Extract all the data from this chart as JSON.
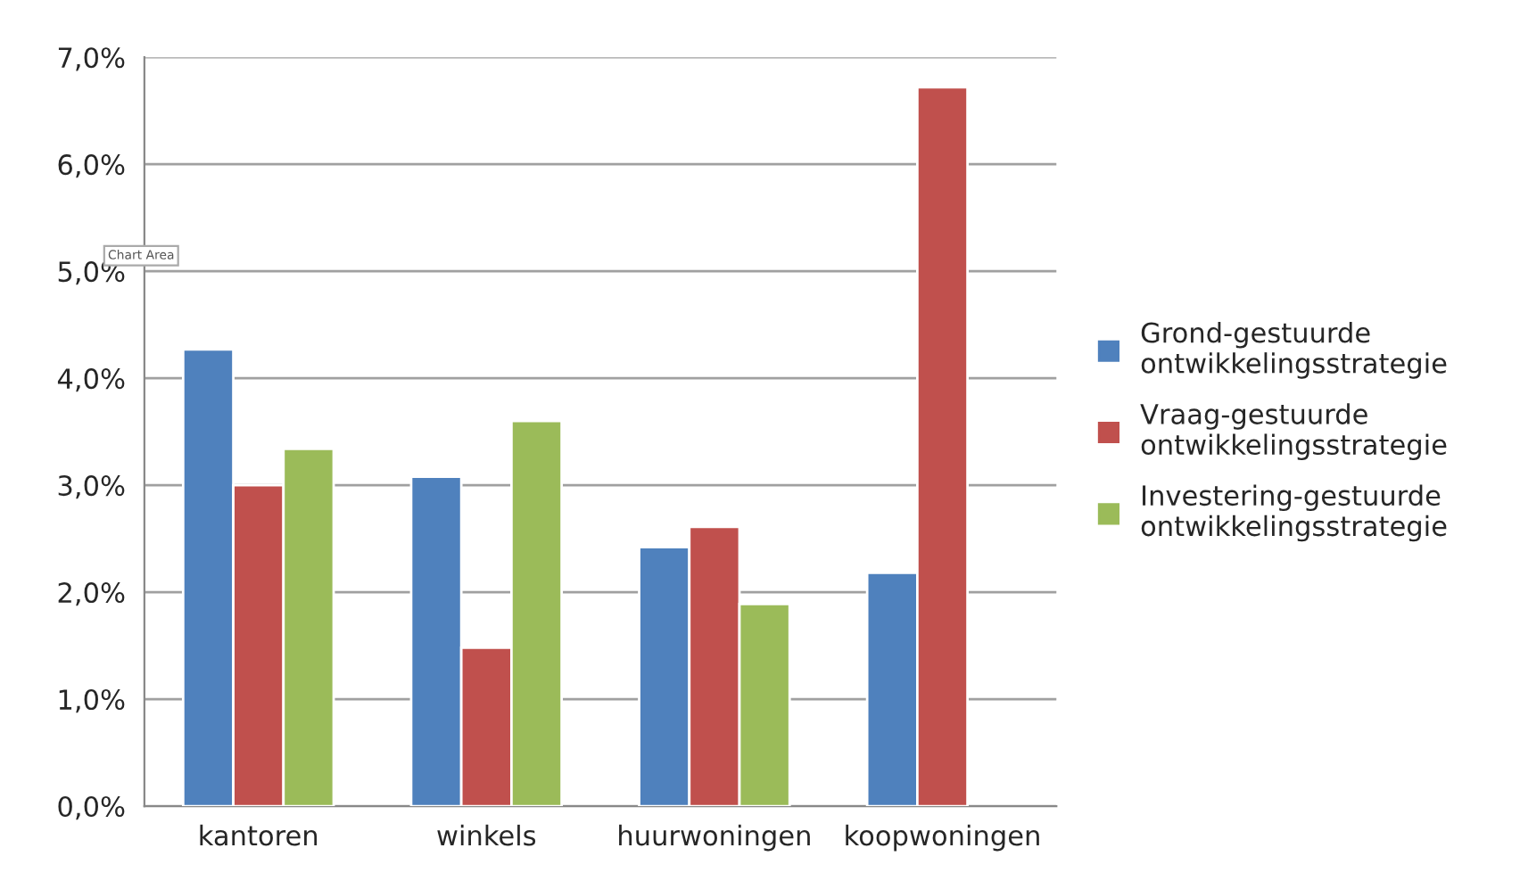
{
  "chart_data": {
    "type": "bar",
    "categories": [
      "kantoren",
      "winkels",
      "huurwoningen",
      "koopwoningen"
    ],
    "series": [
      {
        "name": "Grond-gestuurde ontwikkelingsstrategie",
        "color": "#4f81bd",
        "values": [
          4.27,
          3.08,
          2.42,
          2.18
        ]
      },
      {
        "name": "Vraag-gestuurde ontwikkelingsstrategie",
        "color": "#c0504d",
        "values": [
          3.0,
          1.48,
          2.61,
          6.72
        ]
      },
      {
        "name": "Investering-gestuurde ontwikkelingsstrategie",
        "color": "#9bbb59",
        "values": [
          3.34,
          3.6,
          1.89,
          null
        ]
      }
    ],
    "ylim": [
      0,
      7
    ],
    "yticks": [
      {
        "value": 0,
        "label": "0,0%"
      },
      {
        "value": 1,
        "label": "1,0%"
      },
      {
        "value": 2,
        "label": "2,0%"
      },
      {
        "value": 3,
        "label": "3,0%"
      },
      {
        "value": 4,
        "label": "4,0%"
      },
      {
        "value": 5,
        "label": "5,0%"
      },
      {
        "value": 6,
        "label": "6,0%"
      },
      {
        "value": 7,
        "label": "7,0%"
      }
    ],
    "grid": "y",
    "legend": "right",
    "annotations": [
      "Chart Area"
    ]
  }
}
